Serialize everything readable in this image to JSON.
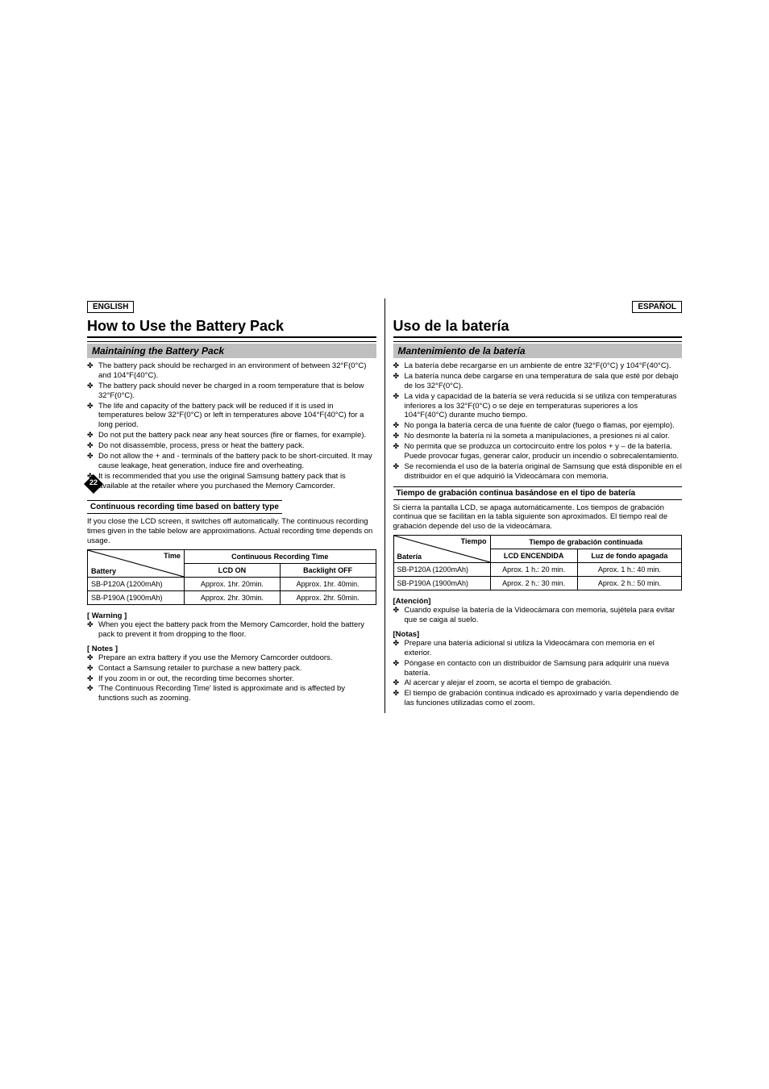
{
  "page_number": "22",
  "left": {
    "lang": "ENGLISH",
    "h1": "How to Use the Battery Pack",
    "h2": "Maintaining the Battery Pack",
    "bullets": [
      "The battery pack should be recharged in an environment of between 32°F(0°C) and 104°F(40°C).",
      "The battery pack should never be charged in a room temperature that is below 32°F(0°C).",
      "The life and capacity of the battery pack will be reduced if it is used in temperatures below 32°F(0°C) or left in temperatures above 104°F(40°C) for a long period.",
      "Do not put the battery pack near any heat sources (fire or flames, for example).",
      "Do not disassemble, process, press or heat the battery pack.",
      "Do not allow the + and - terminals of the battery pack to be short-circuited. It may cause leakage, heat generation, induce fire and overheating.",
      "It is recommended that you use the original Samsung battery pack that is available at the retailer where you purchased the Memory Camcorder."
    ],
    "sub_h": "Continuous recording time based on battery type",
    "para": "If you close the LCD screen, it switches off automatically.\nThe continuous recording times given in the table below are approximations. Actual recording time depends on usage.",
    "table": {
      "diag_top": "Time",
      "diag_bottom": "Battery",
      "group_header": "Continuous Recording Time",
      "col1": "LCD ON",
      "col2": "Backlight OFF",
      "rows": [
        {
          "b": "SB-P120A (1200mAh)",
          "c1": "Approx. 1hr. 20min.",
          "c2": "Approx. 1hr. 40min."
        },
        {
          "b": "SB-P190A (1900mAh)",
          "c1": "Approx. 2hr. 30min.",
          "c2": "Approx. 2hr. 50min."
        }
      ]
    },
    "warning_label": "[ Warning ]",
    "warning_items": [
      "When you eject the battery pack from the Memory Camcorder, hold the battery pack to prevent it from dropping to the floor."
    ],
    "notes_label": "[ Notes ]",
    "notes_items": [
      "Prepare an extra battery if you use the Memory Camcorder outdoors.",
      "Contact a Samsung retailer to purchase a new battery pack.",
      "If you zoom in or out, the recording time becomes shorter.",
      "'The Continuous Recording Time' listed is approximate and is affected by functions such as zooming."
    ]
  },
  "right": {
    "lang": "ESPAÑOL",
    "h1": "Uso de la batería",
    "h2": "Mantenimiento de la batería",
    "bullets": [
      "La batería debe recargarse en un ambiente de entre 32°F(0°C) y 104°F(40°C).",
      "La batería nunca debe cargarse en una temperatura de sala que esté por debajo de los 32°F(0°C).",
      "La vida y capacidad de la batería se verá reducida si se utiliza con temperaturas inferiores a los 32°F(0°C) o se deje en temperaturas superiores a los 104°F(40°C) durante mucho tiempo.",
      "No ponga la batería cerca de una fuente de calor (fuego o flamas, por ejemplo).",
      "No desmonte la batería ni la someta a manipulaciones, a presiones ni al calor.",
      "No permita que se produzca un cortocircuito entre los polos + y – de la batería. Puede provocar fugas, generar calor, producir un incendio o sobrecalentamiento.",
      "Se recomienda el uso de la batería original de Samsung que está disponible en el distribuidor en el que adquirió la Videocámara con memoria."
    ],
    "sub_h": "Tiempo de grabación continua basándose en el tipo de batería",
    "para": "Si cierra la pantalla LCD, se apaga automáticamente.\nLos tiempos de grabación continua que se facilitan en la tabla siguiente son aproximados. El tiempo real de grabación depende del uso de la videocámara.",
    "table": {
      "diag_top": "Tiempo",
      "diag_bottom": "Batería",
      "group_header": "Tiempo de grabación continuada",
      "col1": "LCD ENCENDIDA",
      "col2": "Luz de fondo apagada",
      "rows": [
        {
          "b": "SB-P120A (1200mAh)",
          "c1": "Aprox. 1 h.: 20 min.",
          "c2": "Aprox. 1 h.: 40 min."
        },
        {
          "b": "SB-P190A (1900mAh)",
          "c1": "Aprox. 2 h.: 30 min.",
          "c2": "Aprox. 2 h.: 50 min."
        }
      ]
    },
    "warning_label": "[Atención]",
    "warning_items": [
      "Cuando expulse la batería de la Videocámara con memoria, sujétela para evitar que se caiga al suelo."
    ],
    "notes_label": "[Notas]",
    "notes_items": [
      "Prepare una batería adicional si utiliza la Videocámara con memoria en el exterior.",
      "Póngase en contacto con un distribuidor de Samsung para adquirir una nueva batería.",
      "Al acercar y alejar el zoom, se acorta el tiempo de grabación.",
      "El tiempo de grabación continua indicado es aproximado y varía dependiendo de las funciones utilizadas como el zoom."
    ]
  },
  "colors": {
    "h2_bg": "#bfbfbf",
    "pagenum_bg": "#000",
    "pagenum_fg": "#fff"
  }
}
